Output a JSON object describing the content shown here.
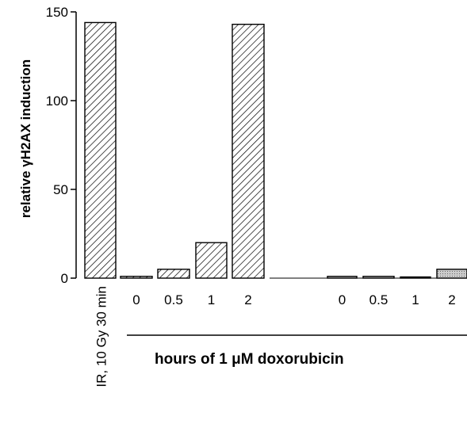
{
  "chart_data": {
    "type": "bar",
    "ylabel": "relative γH2AX induction",
    "ylim": [
      0,
      150
    ],
    "yticks": [
      0,
      50,
      100,
      150
    ],
    "group_label": "hours of 1 μM doxorubicin",
    "bars": [
      {
        "label": "IR, 10 Gy 30 min",
        "value": 144,
        "fill": "hatch"
      },
      {
        "label": "0",
        "value": 1,
        "fill": "hatch"
      },
      {
        "label": "0.5",
        "value": 5,
        "fill": "hatch"
      },
      {
        "label": "1",
        "value": 20,
        "fill": "hatch"
      },
      {
        "label": "2",
        "value": 143,
        "fill": "hatch"
      },
      {
        "label": "",
        "value": 0,
        "fill": "none"
      },
      {
        "label": "0",
        "value": 1,
        "fill": "solid"
      },
      {
        "label": "0.5",
        "value": 1,
        "fill": "solid"
      },
      {
        "label": "1",
        "value": 0,
        "fill": "solid"
      },
      {
        "label": "2",
        "value": 5,
        "fill": "solid"
      }
    ],
    "colors": {
      "hatch": "#000000",
      "solid": "#aaaaaa"
    }
  }
}
